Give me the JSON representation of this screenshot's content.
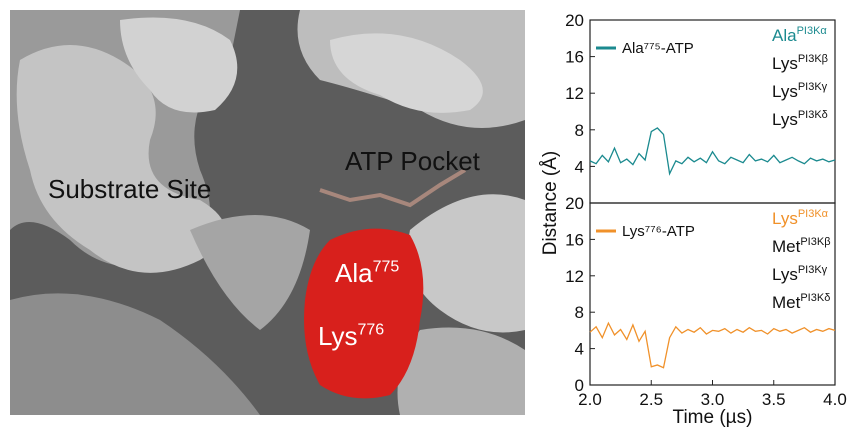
{
  "image_labels": [
    {
      "text": "Substrate Site"
    },
    {
      "text": "ATP Pocket"
    },
    {
      "text": "Ala",
      "sup": "775"
    },
    {
      "text": "Lys",
      "sup": "776"
    }
  ],
  "chart_data": [
    {
      "type": "line",
      "ylabel": "Distance (Å)",
      "xlim": [
        2.0,
        4.0
      ],
      "ylim": [
        0,
        20
      ],
      "yticks": [
        4,
        8,
        12,
        16,
        20
      ],
      "x": [
        2.0,
        2.05,
        2.1,
        2.15,
        2.2,
        2.25,
        2.3,
        2.35,
        2.4,
        2.45,
        2.5,
        2.55,
        2.6,
        2.65,
        2.7,
        2.75,
        2.8,
        2.85,
        2.9,
        2.95,
        3.0,
        3.05,
        3.1,
        3.15,
        3.2,
        3.25,
        3.3,
        3.35,
        3.4,
        3.45,
        3.5,
        3.55,
        3.6,
        3.65,
        3.7,
        3.75,
        3.8,
        3.85,
        3.9,
        3.95,
        4.0
      ],
      "series": [
        {
          "name": "Ala⁷⁷⁵-ATP",
          "color": "#1b8a8f",
          "values": [
            4.6,
            4.3,
            5.2,
            4.5,
            6.0,
            4.4,
            4.8,
            4.2,
            5.4,
            4.7,
            7.8,
            8.2,
            7.5,
            3.2,
            4.6,
            4.3,
            5.0,
            4.5,
            4.9,
            4.4,
            5.6,
            4.6,
            4.3,
            5.0,
            4.7,
            4.4,
            5.3,
            4.6,
            4.8,
            4.5,
            5.2,
            4.4,
            4.7,
            5.0,
            4.6,
            4.3,
            4.9,
            4.6,
            4.8,
            4.5,
            4.7
          ]
        }
      ],
      "residues": [
        {
          "text": "Ala",
          "sup": "PI3Kα",
          "color": "#1b8a8f"
        },
        {
          "text": "Lys",
          "sup": "PI3Kβ",
          "color": "#111111"
        },
        {
          "text": "Lys",
          "sup": "PI3Kγ",
          "color": "#111111"
        },
        {
          "text": "Lys",
          "sup": "PI3Kδ",
          "color": "#111111"
        }
      ]
    },
    {
      "type": "line",
      "xlabel": "Time (µs)",
      "xlim": [
        2.0,
        4.0
      ],
      "ylim": [
        0,
        20
      ],
      "yticks": [
        0,
        4,
        8,
        12,
        16,
        20
      ],
      "xticks": [
        {
          "value": 2.0,
          "label": "2.0"
        },
        {
          "value": 2.5,
          "label": "2.5"
        },
        {
          "value": 3.0,
          "label": "3.0"
        },
        {
          "value": 3.5,
          "label": "3.5"
        },
        {
          "value": 4.0,
          "label": "4.0"
        }
      ],
      "x": [
        2.0,
        2.05,
        2.1,
        2.15,
        2.2,
        2.25,
        2.3,
        2.35,
        2.4,
        2.45,
        2.5,
        2.55,
        2.6,
        2.65,
        2.7,
        2.75,
        2.8,
        2.85,
        2.9,
        2.95,
        3.0,
        3.05,
        3.1,
        3.15,
        3.2,
        3.25,
        3.3,
        3.35,
        3.4,
        3.45,
        3.5,
        3.55,
        3.6,
        3.65,
        3.7,
        3.75,
        3.8,
        3.85,
        3.9,
        3.95,
        4.0
      ],
      "series": [
        {
          "name": "Lys⁷⁷⁶-ATP",
          "color": "#f0912a",
          "values": [
            5.8,
            6.4,
            5.2,
            6.8,
            5.5,
            6.1,
            5.0,
            6.6,
            4.8,
            5.9,
            2.0,
            2.2,
            1.9,
            5.2,
            6.4,
            5.7,
            6.1,
            5.8,
            6.3,
            5.6,
            6.0,
            5.9,
            6.2,
            5.7,
            6.1,
            5.8,
            6.3,
            5.9,
            6.0,
            5.6,
            6.2,
            5.9,
            6.1,
            5.7,
            6.0,
            6.3,
            5.8,
            6.1,
            5.9,
            6.2,
            6.0
          ]
        }
      ],
      "residues": [
        {
          "text": "Lys",
          "sup": "PI3Kα",
          "color": "#f0912a"
        },
        {
          "text": "Met",
          "sup": "PI3Kβ",
          "color": "#111111"
        },
        {
          "text": "Lys",
          "sup": "PI3Kγ",
          "color": "#111111"
        },
        {
          "text": "Met",
          "sup": "PI3Kδ",
          "color": "#111111"
        }
      ]
    }
  ]
}
